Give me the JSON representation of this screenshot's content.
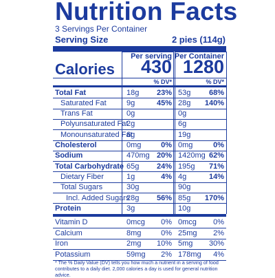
{
  "title": "Nutrition Facts",
  "servings": "3 Servings Per Container",
  "serving_size": {
    "label": "Serving Size",
    "value": "2 pies (114g)"
  },
  "columns": [
    "Per serving",
    "Per Container"
  ],
  "calories": {
    "label": "Calories",
    "values": [
      430,
      1280
    ]
  },
  "dv_header": "% DV*",
  "nutrients": [
    {
      "name": "Total Fat",
      "amounts": [
        "18g",
        "53g"
      ],
      "dv": [
        "23%",
        "68%"
      ],
      "sub": [
        {
          "name": "Saturated Fat",
          "amounts": [
            "9g",
            "28g"
          ],
          "dv": [
            "45%",
            "140%"
          ]
        },
        {
          "name": "Trans Fat",
          "amounts": [
            "0g",
            "0g"
          ]
        },
        {
          "name": "Polyunsaturated Fat",
          "amounts": [
            "2g",
            "6g"
          ]
        },
        {
          "name": "Monounsaturated Fat",
          "amounts": [
            "6g",
            "19g"
          ]
        }
      ]
    },
    {
      "name": "Cholesterol",
      "amounts": [
        "0mg",
        "0mg"
      ],
      "dv": [
        "0%",
        "0%"
      ]
    },
    {
      "name": "Sodium",
      "amounts": [
        "470mg",
        "1420mg"
      ],
      "dv": [
        "20%",
        "62%"
      ]
    },
    {
      "name": "Total Carbohydrate",
      "amounts": [
        "65g",
        "195g"
      ],
      "dv": [
        "24%",
        "71%"
      ],
      "sub": [
        {
          "name": "Dietary Fiber",
          "amounts": [
            "1g",
            "4g"
          ],
          "dv": [
            "4%",
            "14%"
          ]
        },
        {
          "name": "Total Sugars",
          "amounts": [
            "30g",
            "90g"
          ],
          "sub": [
            {
              "name": "Incl. Added Sugars",
              "amounts": [
                "28g",
                "85g"
              ],
              "dv": [
                "56%",
                "170%"
              ]
            }
          ]
        }
      ]
    },
    {
      "name": "Protein",
      "amounts": [
        "3g",
        "10g"
      ]
    }
  ],
  "vitamins": [
    {
      "name": "Vitamin D",
      "amounts": [
        "0mcg",
        "0mcg"
      ],
      "dv": [
        "0%",
        "0%"
      ]
    },
    {
      "name": "Calcium",
      "amounts": [
        "8mg",
        "25mg"
      ],
      "dv": [
        "0%",
        "2%"
      ]
    },
    {
      "name": "Iron",
      "amounts": [
        "2mg",
        "5mg"
      ],
      "dv": [
        "10%",
        "30%"
      ]
    },
    {
      "name": "Potassium",
      "amounts": [
        "59mg",
        "178mg"
      ],
      "dv": [
        "2%",
        "4%"
      ]
    }
  ],
  "footnote": "* The % Daily Value (DV) tells you how much a nutrient in a serving of food contributes to a daily diet. 2,000 calories a day is used for general nutrition advice."
}
